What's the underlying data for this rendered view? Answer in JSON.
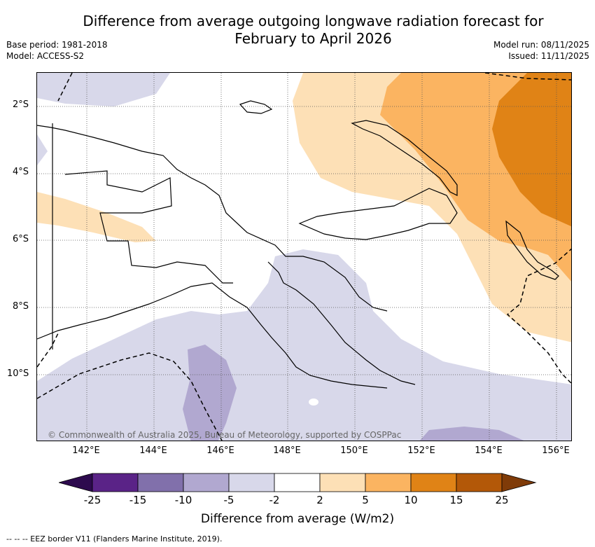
{
  "title_line1": "Difference from average outgoing longwave radiation forecast for",
  "title_line2": "February to April 2026",
  "meta_left": {
    "base_period": "Base period: 1981-2018",
    "model": "Model: ACCESS-S2"
  },
  "meta_right": {
    "model_run": "Model run: 08/11/2025",
    "issued": "Issued: 11/11/2025"
  },
  "lat_labels": [
    "2°S",
    "4°S",
    "6°S",
    "8°S",
    "10°S"
  ],
  "lon_labels": [
    "142°E",
    "144°E",
    "146°E",
    "148°E",
    "150°E",
    "152°E",
    "154°E",
    "156°E"
  ],
  "copyright": "© Commonwealth of Australia 2025, Bureau of Meteorology, supported by COSPPac",
  "colorbar": {
    "title": "Difference from average (W/m2)",
    "ticks": [
      "-25",
      "-15",
      "-10",
      "-5",
      "-2",
      "2",
      "5",
      "10",
      "15",
      "25"
    ],
    "colors": [
      "#5a2387",
      "#8170ab",
      "#b1a8d0",
      "#d8d8ea",
      "#ffffff",
      "#fde0b6",
      "#fbb461",
      "#e08316",
      "#b35808"
    ],
    "under_color": "#2d0a4e",
    "over_color": "#7f3b08"
  },
  "footnote": "-- -- -- EEZ border V11 (Flanders Marine Institute, 2019)."
}
